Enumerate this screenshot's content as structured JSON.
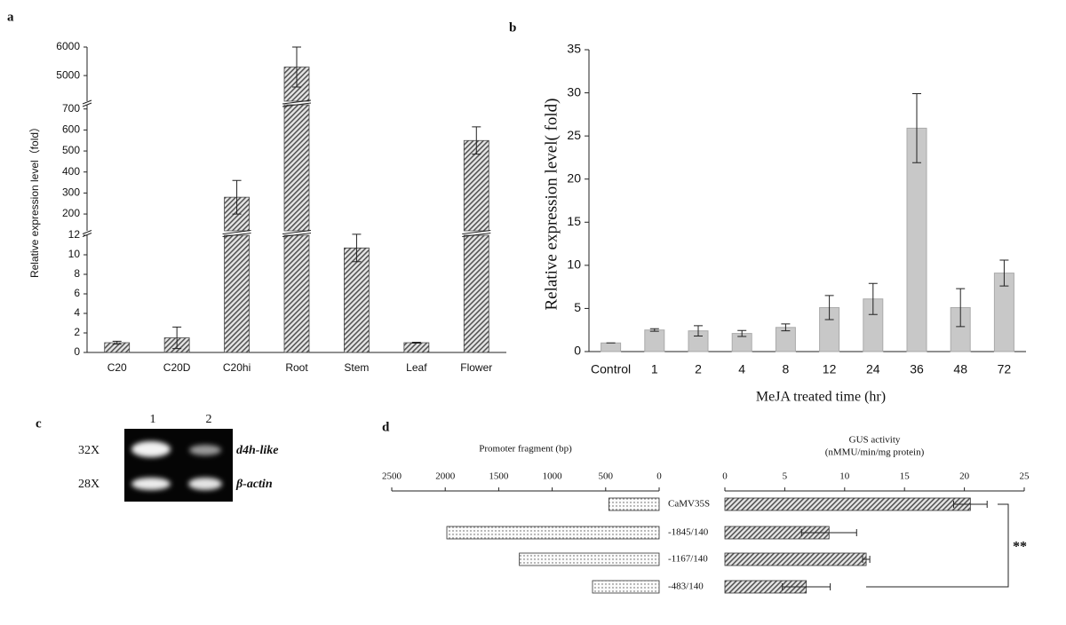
{
  "chart_data": [
    {
      "type": "broken_bar",
      "panel": "a",
      "ylabel": "Relative expression level（fold）",
      "categories": [
        "C20",
        "C20D",
        "C20hi",
        "Root",
        "Stem",
        "Leaf",
        "Flower"
      ],
      "values": [
        1.0,
        1.5,
        280,
        5300,
        10.7,
        1.0,
        550
      ],
      "errors": [
        0.15,
        1.1,
        80,
        700,
        1.4,
        0.05,
        65
      ],
      "color": "#555555",
      "y_segments": [
        {
          "ylim": [
            0,
            12
          ],
          "yticks": [
            0,
            2,
            4,
            6,
            8,
            10,
            12
          ]
        },
        {
          "ylim": [
            120,
            720
          ],
          "yticks": [
            200,
            300,
            400,
            500,
            600,
            700
          ]
        },
        {
          "ylim": [
            4100,
            6000
          ],
          "yticks": [
            5000,
            6000
          ]
        }
      ]
    },
    {
      "type": "bar",
      "panel": "b",
      "ylabel": "Relative expression level( fold)",
      "xlabel": "MeJA treated time (hr)",
      "categories": [
        "Control",
        "1",
        "2",
        "4",
        "8",
        "12",
        "24",
        "36",
        "48",
        "72"
      ],
      "values": [
        1.0,
        2.5,
        2.4,
        2.1,
        2.8,
        5.1,
        6.1,
        25.9,
        5.1,
        9.1
      ],
      "errors": [
        0,
        0.15,
        0.6,
        0.35,
        0.4,
        1.4,
        1.8,
        4.0,
        2.2,
        1.5
      ],
      "color": "#c8c8c8",
      "ylim": [
        0,
        35
      ],
      "yticks": [
        0,
        5,
        10,
        15,
        20,
        25,
        30,
        35
      ]
    },
    {
      "type": "mirrored_bar",
      "panel": "d",
      "annotation": "**",
      "categories": [
        "CaMV35S",
        "-1845/140",
        "-1167/140",
        "-483/140"
      ],
      "left": {
        "title": "Promoter fragment (bp)",
        "values": [
          470,
          1985,
          1307,
          623
        ],
        "xlim": [
          0,
          2500
        ],
        "x_reversed": true,
        "xticks": [
          2500,
          2000,
          1500,
          1000,
          500,
          0
        ],
        "color": "#f4f4f4"
      },
      "right": {
        "title": "GUS activity",
        "subtitle": "(nMMU/min/mg protein)",
        "values": [
          20.5,
          8.7,
          11.8,
          6.8
        ],
        "errors": [
          1.4,
          2.3,
          0.3,
          2.0
        ],
        "xlim": [
          0,
          25
        ],
        "xticks": [
          0,
          5,
          10,
          15,
          20,
          25
        ],
        "color": "#555555"
      }
    }
  ],
  "gel": {
    "panel": "c",
    "lanes": [
      "1",
      "2"
    ],
    "rows": [
      {
        "cycles": "32X",
        "gene": "d4h-like"
      },
      {
        "cycles": "28X",
        "gene": "β-actin"
      }
    ]
  }
}
